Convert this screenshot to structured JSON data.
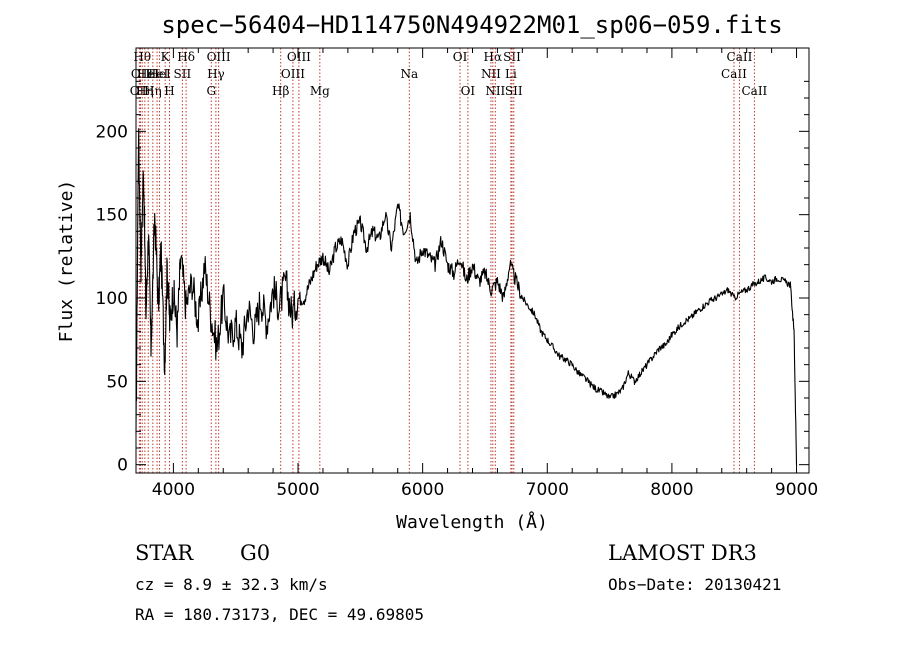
{
  "chart_data": {
    "type": "line",
    "title": "spec−56404−HD114750N494922M01_sp06−059.fits",
    "xlabel": "Wavelength (Å)",
    "ylabel": "Flux (relative)",
    "xlim": [
      3700,
      9100
    ],
    "ylim": [
      -5,
      250
    ],
    "xticks": [
      4000,
      5000,
      6000,
      7000,
      8000,
      9000
    ],
    "yticks": [
      0,
      50,
      100,
      150,
      200
    ],
    "xtick_labels": [
      "4000",
      "5000",
      "6000",
      "7000",
      "8000",
      "9000"
    ],
    "ytick_labels": [
      "0",
      "50",
      "100",
      "150",
      "200"
    ],
    "series": [
      {
        "name": "flux",
        "x": [
          3700,
          3720,
          3740,
          3760,
          3780,
          3800,
          3820,
          3850,
          3880,
          3900,
          3930,
          3950,
          3970,
          4000,
          4030,
          4060,
          4100,
          4150,
          4200,
          4250,
          4300,
          4350,
          4400,
          4450,
          4500,
          4550,
          4600,
          4650,
          4700,
          4750,
          4800,
          4850,
          4900,
          4950,
          5000,
          5050,
          5100,
          5150,
          5200,
          5250,
          5300,
          5350,
          5400,
          5450,
          5500,
          5550,
          5600,
          5650,
          5700,
          5750,
          5800,
          5850,
          5900,
          5950,
          6000,
          6050,
          6100,
          6150,
          6200,
          6250,
          6300,
          6350,
          6400,
          6450,
          6500,
          6550,
          6600,
          6650,
          6700,
          6750,
          6800,
          6850,
          6900,
          6950,
          7000,
          7050,
          7100,
          7150,
          7200,
          7250,
          7300,
          7350,
          7400,
          7450,
          7500,
          7550,
          7600,
          7650,
          7700,
          7750,
          7800,
          7850,
          7900,
          7950,
          8000,
          8050,
          8100,
          8150,
          8200,
          8250,
          8300,
          8350,
          8400,
          8450,
          8500,
          8550,
          8600,
          8650,
          8700,
          8750,
          8800,
          8850,
          8900,
          8950,
          8980,
          9000
        ],
        "y": [
          10,
          200,
          120,
          180,
          90,
          140,
          70,
          150,
          95,
          130,
          60,
          120,
          85,
          105,
          80,
          125,
          95,
          110,
          85,
          120,
          90,
          70,
          100,
          75,
          85,
          70,
          95,
          80,
          100,
          85,
          105,
          95,
          110,
          90,
          100,
          100,
          110,
          120,
          125,
          115,
          130,
          135,
          120,
          140,
          145,
          130,
          140,
          135,
          150,
          130,
          155,
          140,
          150,
          120,
          130,
          125,
          120,
          135,
          120,
          115,
          125,
          110,
          120,
          110,
          115,
          105,
          110,
          100,
          120,
          110,
          100,
          95,
          90,
          80,
          75,
          70,
          65,
          63,
          60,
          55,
          52,
          48,
          45,
          43,
          40,
          42,
          45,
          55,
          50,
          55,
          60,
          65,
          70,
          72,
          78,
          82,
          86,
          88,
          92,
          95,
          98,
          100,
          102,
          105,
          100,
          103,
          105,
          108,
          110,
          112,
          110,
          112,
          110,
          108,
          80,
          0
        ]
      }
    ],
    "lines": [
      {
        "x": 3727,
        "label": "OII",
        "row": 2
      },
      {
        "x": 3736,
        "label": "OII",
        "row": 1
      },
      {
        "x": 3750,
        "label": "Hθ",
        "row": 0
      },
      {
        "x": 3771,
        "label": "Hη",
        "row": 2
      },
      {
        "x": 3798,
        "label": "HeI",
        "row": 1
      },
      {
        "x": 3835,
        "label": "Hη",
        "row": 2
      },
      {
        "x": 3869,
        "label": "HeI",
        "row": 1
      },
      {
        "x": 3889,
        "label": "HeI",
        "row": 1
      },
      {
        "x": 3934,
        "label": "K",
        "row": 0
      },
      {
        "x": 3969,
        "label": "H",
        "row": 2
      },
      {
        "x": 4072,
        "label": "SII",
        "row": 1
      },
      {
        "x": 4102,
        "label": "Hδ",
        "row": 0
      },
      {
        "x": 4304,
        "label": "G",
        "row": 2
      },
      {
        "x": 4341,
        "label": "Hγ",
        "row": 1
      },
      {
        "x": 4363,
        "label": "OIII",
        "row": 0
      },
      {
        "x": 4861,
        "label": "Hβ",
        "row": 2
      },
      {
        "x": 4959,
        "label": "OIII",
        "row": 1
      },
      {
        "x": 5007,
        "label": "OIII",
        "row": 0
      },
      {
        "x": 5175,
        "label": "Mg",
        "row": 2
      },
      {
        "x": 5893,
        "label": "Na",
        "row": 1
      },
      {
        "x": 6300,
        "label": "OI",
        "row": 0
      },
      {
        "x": 6363,
        "label": "OI",
        "row": 2
      },
      {
        "x": 6548,
        "label": "NII",
        "row": 1
      },
      {
        "x": 6563,
        "label": "Hα",
        "row": 0
      },
      {
        "x": 6583,
        "label": "NII",
        "row": 2
      },
      {
        "x": 6708,
        "label": "Li",
        "row": 1
      },
      {
        "x": 6717,
        "label": "SII",
        "row": 0
      },
      {
        "x": 6731,
        "label": "SII",
        "row": 2
      },
      {
        "x": 8498,
        "label": "CaII",
        "row": 1
      },
      {
        "x": 8542,
        "label": "CaII",
        "row": 0
      },
      {
        "x": 8662,
        "label": "CaII",
        "row": 2
      }
    ]
  },
  "info": {
    "class": "STAR",
    "subclass": "G0",
    "survey": "LAMOST DR3",
    "redshift": "cz = 8.9 ± 32.3 km/s",
    "obs_date": "Obs−Date: 20130421",
    "coords": "RA = 180.73173, DEC =  49.69805"
  },
  "colors": {
    "spectrum": "#000000",
    "line_markers": "#c0392b",
    "axes": "#000000"
  }
}
